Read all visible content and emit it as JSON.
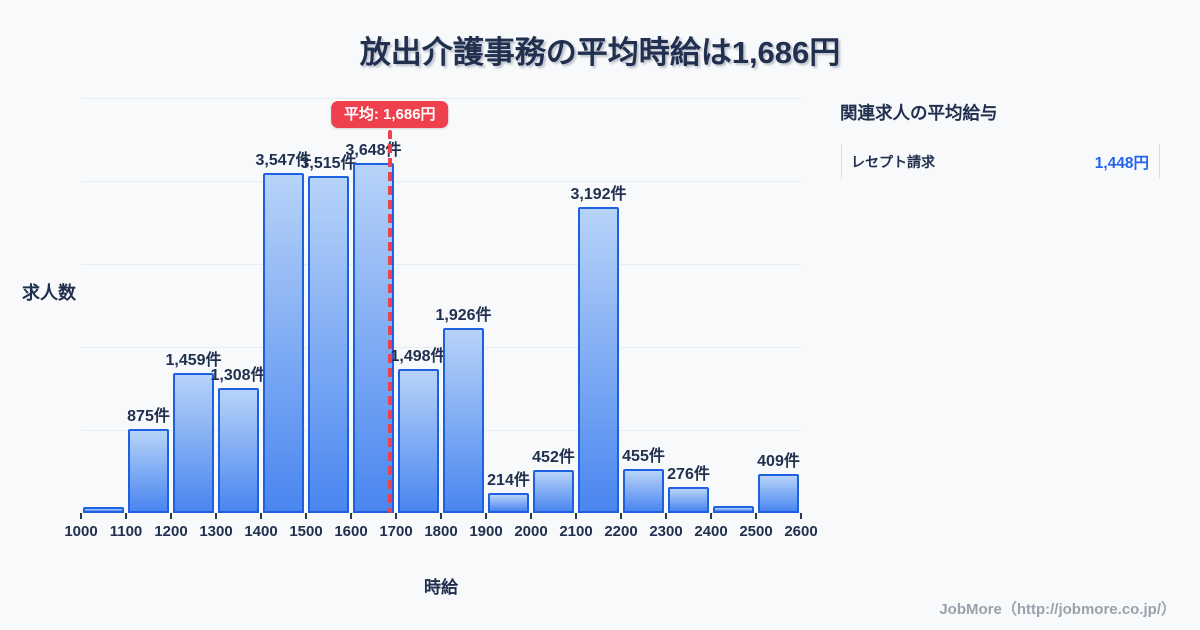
{
  "page": {
    "background": "#f8f9fb",
    "title": "放出介護事務の平均時給は1,686円",
    "footer": "JobMore（http://jobmore.co.jp/）"
  },
  "side_panel": {
    "title": "関連求人の平均給与",
    "rows": [
      {
        "label": "レセプト請求",
        "value": "1,448円"
      }
    ]
  },
  "chart_data": {
    "type": "bar",
    "title": "放出介護事務の平均時給は1,686円",
    "xlabel": "時給",
    "ylabel": "求人数",
    "unit": "件",
    "bin_width": 100,
    "x_ticks": [
      1000,
      1100,
      1200,
      1300,
      1400,
      1500,
      1600,
      1700,
      1800,
      1900,
      2000,
      2100,
      2200,
      2300,
      2400,
      2500,
      2600
    ],
    "bin_start": [
      1000,
      1100,
      1200,
      1300,
      1400,
      1500,
      1600,
      1700,
      1800,
      1900,
      2000,
      2100,
      2200,
      2300,
      2400,
      2500
    ],
    "values": [
      60,
      875,
      1459,
      1308,
      3547,
      3515,
      3648,
      1498,
      1926,
      214,
      452,
      3192,
      455,
      276,
      75,
      409
    ],
    "labels": [
      "",
      "875件",
      "1,459件",
      "1,308件",
      "3,547件",
      "3,515件",
      "3,648件",
      "1,498件",
      "1,926件",
      "214件",
      "452件",
      "3,192件",
      "455件",
      "276件",
      "",
      "409件"
    ],
    "unlabeled_bar_values_are_estimates": true,
    "average": {
      "value": 1686,
      "label": "平均: 1,686円"
    },
    "xlim": [
      1000,
      2600
    ],
    "ylim": [
      0,
      4330
    ],
    "grid": "horizontal",
    "legend": false,
    "colors": {
      "bg": "#f8f9fb",
      "ink": "#20304e",
      "bar_fill_top": "#b7d3f8",
      "bar_fill_bottom": "#4a86f0",
      "bar_border": "#1d60e2",
      "average_red": "#ee404d",
      "value_blue": "#2563eb",
      "grid_line": "#e7ebf2",
      "footer_gray": "#9ba1ab",
      "panel_border": "#d7dce6"
    }
  }
}
